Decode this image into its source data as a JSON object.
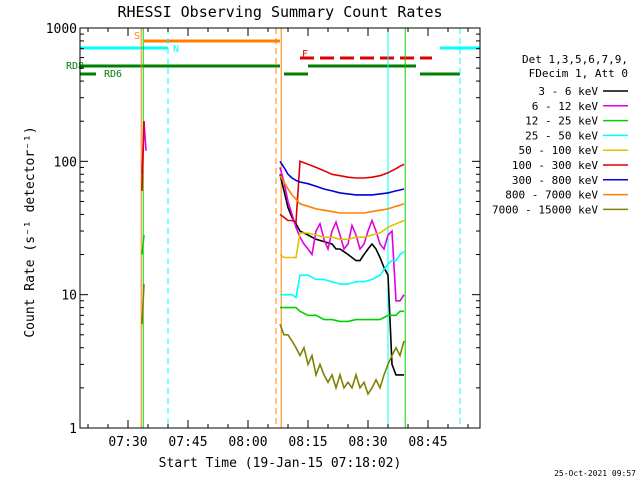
{
  "chart_data": {
    "type": "line",
    "title": "RHESSI Observing Summary Count Rates",
    "xlabel": "Start Time (19-Jan-15 07:18:02)",
    "ylabel": "Count Rate (s⁻¹ detector⁻¹)",
    "x_ticks": [
      "07:30",
      "07:45",
      "08:00",
      "08:15",
      "08:30",
      "08:45"
    ],
    "y_ticks": [
      "1",
      "10",
      "100",
      "1000"
    ],
    "ylim": [
      1,
      1000
    ],
    "y_scale": "log",
    "x_range_minutes": [
      0,
      100
    ],
    "timestamp": "25-Oct-2021 09:57",
    "legend": {
      "header": [
        "Det 1,3,5,6,7,9,",
        "FDecim 1, Att 0"
      ],
      "entries": [
        {
          "label": "3 - 6 keV",
          "color": "#000000"
        },
        {
          "label": "6 - 12 keV",
          "color": "#e000e0"
        },
        {
          "label": "12 - 25 keV",
          "color": "#00d000"
        },
        {
          "label": "25 - 50 keV",
          "color": "#00ffff"
        },
        {
          "label": "50 - 100 keV",
          "color": "#e0c000"
        },
        {
          "label": "100 - 300 keV",
          "color": "#e00000"
        },
        {
          "label": "300 - 800 keV",
          "color": "#0000e0"
        },
        {
          "label": "800 - 7000 keV",
          "color": "#ff8000"
        },
        {
          "label": "7000 - 15000 keV",
          "color": "#808000"
        }
      ]
    },
    "flags": [
      {
        "label": "S",
        "color": "#ff8000",
        "start": 16,
        "end": 50
      },
      {
        "label": "N",
        "color": "#00ffff",
        "start": 0,
        "end": 22
      },
      {
        "label": "N",
        "color": "#00ffff",
        "start": 90,
        "end": 100
      },
      {
        "label": "F",
        "color": "#e00000",
        "start": 55,
        "end": 88,
        "dashed": true
      },
      {
        "label": "RD8",
        "color": "#008000",
        "start": 0,
        "end": 50
      },
      {
        "label": "RD8",
        "color": "#008000",
        "start": 57,
        "end": 84
      },
      {
        "label": "RD6",
        "color": "#008000",
        "start": 0,
        "end": 4
      },
      {
        "label": "RD6",
        "color": "#008000",
        "start": 51,
        "end": 57
      },
      {
        "label": "RD6",
        "color": "#008000",
        "start": 85,
        "end": 95
      }
    ],
    "vlines": [
      {
        "minute": 15.3,
        "color": "#ff8000",
        "style": "solid"
      },
      {
        "minute": 15.8,
        "color": "#00d000",
        "style": "solid"
      },
      {
        "minute": 22.0,
        "color": "#00ffff",
        "style": "dashed"
      },
      {
        "minute": 49.0,
        "color": "#ff8000",
        "style": "dashed"
      },
      {
        "minute": 50.3,
        "color": "#ff8000",
        "style": "solid"
      },
      {
        "minute": 77.0,
        "color": "#00ffff",
        "style": "solid"
      },
      {
        "minute": 81.3,
        "color": "#00d000",
        "style": "solid"
      },
      {
        "minute": 95.0,
        "color": "#00ffff",
        "style": "dashed"
      }
    ],
    "series": [
      {
        "name": "3 - 6 keV",
        "color": "#000000",
        "x": [
          50,
          51,
          52,
          53,
          54,
          55,
          57,
          59,
          61,
          63,
          64,
          65,
          66,
          67,
          68,
          69,
          70,
          71,
          72,
          73,
          74,
          75,
          76,
          77,
          78,
          79,
          80,
          81
        ],
        "y": [
          80,
          60,
          45,
          38,
          34,
          30,
          28,
          26,
          25,
          24,
          22,
          22,
          21,
          20,
          19,
          18,
          18,
          20,
          22,
          24,
          22,
          19,
          16,
          14,
          3,
          2.5,
          2.5,
          2.5
        ]
      },
      {
        "name": "6 - 12 keV",
        "color": "#e000e0",
        "x": [
          15.5,
          16,
          16.5,
          50,
          51,
          52,
          53,
          54,
          55,
          56,
          57,
          58,
          59,
          60,
          61,
          62,
          63,
          64,
          65,
          66,
          67,
          68,
          69,
          70,
          71,
          72,
          73,
          74,
          75,
          76,
          77,
          78,
          79,
          80,
          81
        ],
        "y": [
          80,
          200,
          120,
          90,
          70,
          50,
          40,
          32,
          27,
          24,
          22,
          20,
          30,
          34,
          26,
          22,
          30,
          35,
          28,
          22,
          24,
          33,
          28,
          22,
          24,
          30,
          36,
          30,
          24,
          22,
          28,
          30,
          9,
          9,
          10
        ]
      },
      {
        "name": "12 - 25 keV",
        "color": "#00d000",
        "x": [
          15.5,
          16,
          50,
          51,
          52,
          53,
          54,
          55,
          57,
          59,
          61,
          63,
          65,
          67,
          69,
          71,
          73,
          75,
          77,
          78,
          79,
          80,
          81
        ],
        "y": [
          20,
          28,
          8,
          8,
          8,
          8,
          8,
          7.5,
          7,
          7,
          6.5,
          6.5,
          6.3,
          6.3,
          6.5,
          6.5,
          6.5,
          6.5,
          7,
          7,
          7,
          7.5,
          7.5
        ]
      },
      {
        "name": "25 - 50 keV",
        "color": "#00ffff",
        "x": [
          50,
          51,
          52,
          53,
          54,
          55,
          57,
          59,
          61,
          63,
          65,
          67,
          69,
          71,
          73,
          75,
          77,
          78,
          79,
          80,
          81
        ],
        "y": [
          10,
          10,
          10,
          10,
          9.5,
          14,
          14,
          13,
          13,
          12.5,
          12,
          12,
          12.5,
          12.5,
          13,
          14,
          17,
          18,
          18,
          20,
          21
        ]
      },
      {
        "name": "50 - 100 keV",
        "color": "#e0c000",
        "x": [
          50,
          51,
          52,
          53,
          54,
          55,
          57,
          59,
          61,
          63,
          65,
          67,
          69,
          71,
          73,
          75,
          77,
          78,
          79,
          80,
          81
        ],
        "y": [
          20,
          19,
          19,
          19,
          19,
          29,
          29,
          28,
          27,
          27,
          26,
          26,
          27,
          27,
          28,
          29,
          32,
          33,
          34,
          35,
          36
        ]
      },
      {
        "name": "100 - 300 keV",
        "color": "#e00000",
        "x": [
          15.5,
          16,
          50,
          51,
          52,
          53,
          54,
          55,
          57,
          59,
          61,
          63,
          65,
          67,
          69,
          71,
          73,
          75,
          77,
          78,
          79,
          80,
          81
        ],
        "y": [
          60,
          200,
          40,
          38,
          36,
          36,
          35,
          100,
          95,
          90,
          85,
          80,
          78,
          76,
          75,
          75,
          76,
          78,
          82,
          85,
          88,
          92,
          95
        ]
      },
      {
        "name": "300 - 800 keV",
        "color": "#0000e0",
        "x": [
          50,
          51,
          52,
          53,
          54,
          55,
          57,
          59,
          61,
          63,
          65,
          67,
          69,
          71,
          73,
          75,
          77,
          78,
          79,
          80,
          81
        ],
        "y": [
          100,
          90,
          80,
          75,
          72,
          70,
          68,
          65,
          62,
          60,
          58,
          57,
          56,
          56,
          56,
          57,
          58,
          59,
          60,
          61,
          62
        ]
      },
      {
        "name": "800 - 7000 keV",
        "color": "#ff8000",
        "x": [
          50,
          51,
          52,
          53,
          54,
          55,
          57,
          59,
          61,
          63,
          65,
          67,
          69,
          71,
          73,
          75,
          77,
          78,
          79,
          80,
          81
        ],
        "y": [
          78,
          70,
          62,
          56,
          52,
          48,
          46,
          44,
          43,
          42,
          41,
          41,
          41,
          41,
          42,
          43,
          44,
          45,
          46,
          47,
          48
        ]
      },
      {
        "name": "7000 - 15000 keV",
        "color": "#808000",
        "x": [
          15.5,
          16,
          50,
          51,
          52,
          53,
          54,
          55,
          56,
          57,
          58,
          59,
          60,
          61,
          62,
          63,
          64,
          65,
          66,
          67,
          68,
          69,
          70,
          71,
          72,
          73,
          74,
          75,
          76,
          77,
          78,
          79,
          80,
          81
        ],
        "y": [
          6,
          12,
          6,
          5,
          5,
          4.5,
          4,
          3.5,
          4,
          3,
          3.5,
          2.5,
          3,
          2.5,
          2.2,
          2.5,
          2,
          2.5,
          2,
          2.2,
          2,
          2.5,
          2,
          2.2,
          1.8,
          2,
          2.3,
          2,
          2.5,
          3,
          3.5,
          4,
          3.5,
          4.5
        ]
      }
    ]
  }
}
